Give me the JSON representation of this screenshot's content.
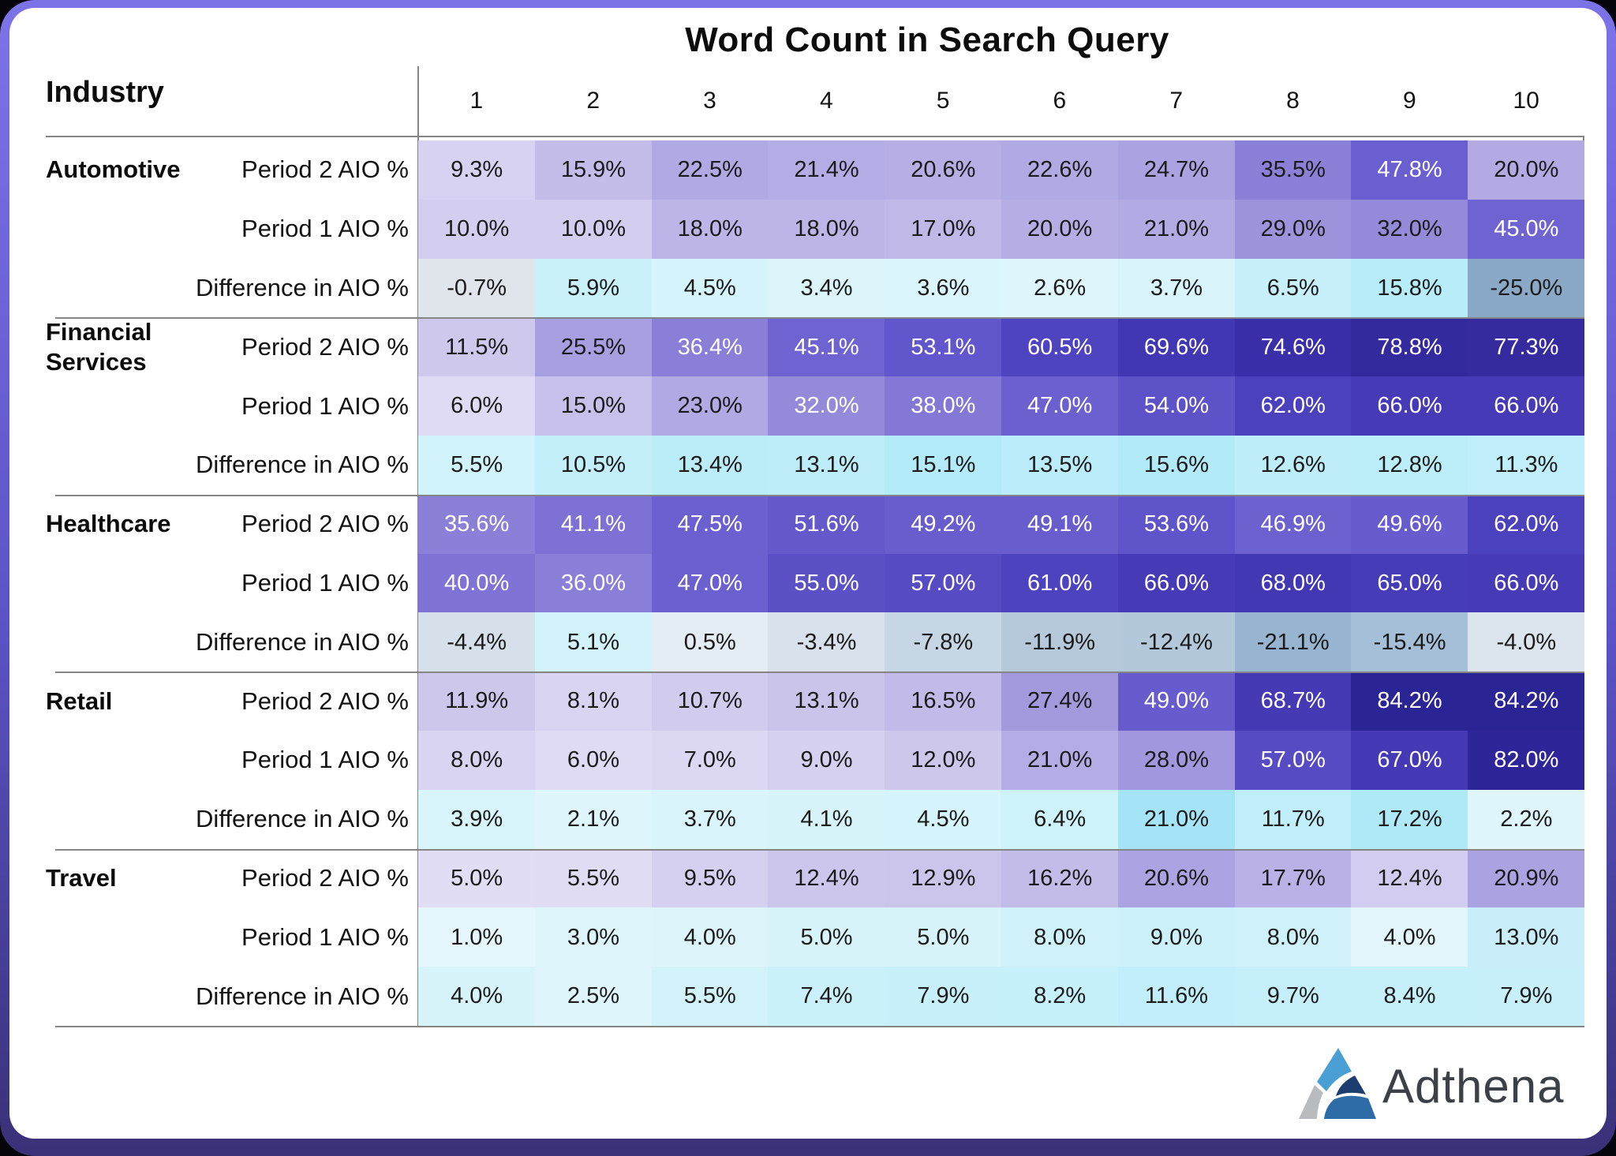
{
  "header": {
    "title": "Word Count in Search Query",
    "industry_label": "Industry"
  },
  "footer": {
    "brand": "Adthena",
    "logo_colors": {
      "top": "#4aa0d5",
      "left": "#b9bcbe",
      "inner": "#1c3e6e",
      "bottom": "#2d6ca7",
      "text": "#3c4147"
    }
  },
  "frame_colors": {
    "border_top": "#7c73e9",
    "border_bottom": "#3a3178",
    "card_bg": "#ffffff",
    "grid_line": "#858585"
  },
  "chart_data": {
    "type": "heatmap",
    "title": "Word Count in Search Query",
    "columns": [
      "1",
      "2",
      "3",
      "4",
      "5",
      "6",
      "7",
      "8",
      "9",
      "10"
    ],
    "row_types": [
      "Period 2 AIO %",
      "Period 1 AIO %",
      "Difference in AIO %"
    ],
    "legend_hint": "purple scale = AIO % magnitude; cyan = positive difference; slate gray = negative difference",
    "industries": [
      {
        "name": "Automotive",
        "rows": [
          {
            "label": "Period 2 AIO %",
            "values": [
              9.3,
              15.9,
              22.5,
              21.4,
              20.6,
              22.6,
              24.7,
              35.5,
              47.8,
              20.0
            ],
            "display": [
              "9.3%",
              "15.9%",
              "22.5%",
              "21.4%",
              "20.6%",
              "22.6%",
              "24.7%",
              "35.5%",
              "47.8%",
              "20.0%"
            ],
            "bg": [
              "#d7d2f1",
              "#c4bdea",
              "#b1a9e3",
              "#b4ace4",
              "#b6aee5",
              "#b1a9e3",
              "#aba2e1",
              "#8b80d8",
              "#6a5ed0",
              "#b3aae4"
            ],
            "text": "ddddddddLd"
          },
          {
            "label": "Period 1 AIO %",
            "values": [
              10.0,
              10.0,
              18.0,
              18.0,
              17.0,
              20.0,
              21.0,
              29.0,
              32.0,
              45.0
            ],
            "display": [
              "10.0%",
              "10.0%",
              "18.0%",
              "18.0%",
              "17.0%",
              "20.0%",
              "21.0%",
              "29.0%",
              "32.0%",
              "45.0%"
            ],
            "bg": [
              "#d3cdef",
              "#d3cdef",
              "#bdb5e7",
              "#bdb5e7",
              "#c0b9e8",
              "#b5ade4",
              "#b2aae3",
              "#9d93dc",
              "#948ada",
              "#6f63d2"
            ],
            "text": "dddddddddL"
          },
          {
            "label": "Difference in AIO %",
            "values": [
              -0.7,
              5.9,
              4.5,
              3.4,
              3.6,
              2.6,
              3.7,
              6.5,
              15.8,
              -25.0
            ],
            "display": [
              "-0.7%",
              "5.9%",
              "4.5%",
              "3.4%",
              "3.6%",
              "2.6%",
              "3.7%",
              "6.5%",
              "15.8%",
              "-25.0%"
            ],
            "bg": [
              "#e0e4eb",
              "#caf1fa",
              "#d5f4fb",
              "#dbf5fb",
              "#daf5fb",
              "#def6fc",
              "#d9f5fb",
              "#c7f0fa",
              "#b7ecf9",
              "#8aa9c6"
            ],
            "text": "dddddddddd"
          }
        ]
      },
      {
        "name": "Financial Services",
        "rows": [
          {
            "label": "Period 2 AIO %",
            "values": [
              11.5,
              25.5,
              36.4,
              45.1,
              53.1,
              60.5,
              69.6,
              74.6,
              78.8,
              77.3
            ],
            "display": [
              "11.5%",
              "25.5%",
              "36.4%",
              "45.1%",
              "53.1%",
              "60.5%",
              "69.6%",
              "74.6%",
              "78.8%",
              "77.3%"
            ],
            "bg": [
              "#cec8ed",
              "#a89fe0",
              "#897ed8",
              "#6f63d2",
              "#6156cb",
              "#4f44c0",
              "#4237b2",
              "#3a2fa8",
              "#332a9e",
              "#352b9f"
            ],
            "text": "ddLLLLLLLL"
          },
          {
            "label": "Period 1 AIO %",
            "values": [
              6.0,
              15.0,
              23.0,
              32.0,
              38.0,
              47.0,
              54.0,
              62.0,
              66.0,
              66.0
            ],
            "display": [
              "6.0%",
              "15.0%",
              "23.0%",
              "32.0%",
              "38.0%",
              "47.0%",
              "54.0%",
              "62.0%",
              "66.0%",
              "66.0%"
            ],
            "bg": [
              "#dfdbf4",
              "#c6c0ea",
              "#b1a9e3",
              "#948ada",
              "#8478d6",
              "#6c60d0",
              "#5e52c8",
              "#4c41bd",
              "#463ab7",
              "#463ab7"
            ],
            "text": "dddLLLLLLL"
          },
          {
            "label": "Difference in AIO %",
            "values": [
              5.5,
              10.5,
              13.4,
              13.1,
              15.1,
              13.5,
              15.6,
              12.6,
              12.8,
              11.3
            ],
            "display": [
              "5.5%",
              "10.5%",
              "13.4%",
              "13.1%",
              "15.1%",
              "13.5%",
              "15.6%",
              "12.6%",
              "12.8%",
              "11.3%"
            ],
            "bg": [
              "#d1f3fb",
              "#c2effa",
              "#bbedf9",
              "#bcedf9",
              "#b4ebf9",
              "#baedf9",
              "#b2eaf8",
              "#bdeef9",
              "#bceef9",
              "#c0eefa"
            ],
            "text": "dddddddddd"
          }
        ]
      },
      {
        "name": "Healthcare",
        "rows": [
          {
            "label": "Period 2 AIO %",
            "values": [
              35.6,
              41.1,
              47.5,
              51.6,
              49.2,
              49.1,
              53.6,
              46.9,
              49.6,
              62.0
            ],
            "display": [
              "35.6%",
              "41.1%",
              "47.5%",
              "51.6%",
              "49.2%",
              "49.1%",
              "53.6%",
              "46.9%",
              "49.6%",
              "62.0%"
            ],
            "bg": [
              "#8b80d8",
              "#7d71d5",
              "#6c60d0",
              "#6458cb",
              "#695dce",
              "#695dce",
              "#6054ca",
              "#6d61d0",
              "#675bcd",
              "#4c41bd"
            ],
            "text": "LLLLLLLLLL"
          },
          {
            "label": "Period 1 AIO %",
            "values": [
              40.0,
              36.0,
              47.0,
              55.0,
              57.0,
              61.0,
              66.0,
              68.0,
              65.0,
              66.0
            ],
            "display": [
              "40.0%",
              "36.0%",
              "47.0%",
              "55.0%",
              "57.0%",
              "61.0%",
              "66.0%",
              "68.0%",
              "65.0%",
              "66.0%"
            ],
            "bg": [
              "#7f73d5",
              "#897ed8",
              "#6c60d0",
              "#5c50c7",
              "#574bc4",
              "#4e43bf",
              "#463ab7",
              "#4338b4",
              "#473cb8",
              "#463ab7"
            ],
            "text": "LLLLLLLLLL"
          },
          {
            "label": "Difference in AIO %",
            "values": [
              -4.4,
              5.1,
              0.5,
              -3.4,
              -7.8,
              -11.9,
              -12.4,
              -21.1,
              -15.4,
              -4.0
            ],
            "display": [
              "-4.4%",
              "5.1%",
              "0.5%",
              "-3.4%",
              "-7.8%",
              "-11.9%",
              "-12.4%",
              "-21.1%",
              "-15.4%",
              "-4.0%"
            ],
            "bg": [
              "#d6e0ea",
              "#d3f3fb",
              "#e4edf3",
              "#d9e2ec",
              "#c7d6e4",
              "#b5c9db",
              "#b3c8da",
              "#97b5d0",
              "#a4bfd7",
              "#dce5ee"
            ],
            "text": "dddddddddd"
          }
        ]
      },
      {
        "name": "Retail",
        "rows": [
          {
            "label": "Period 2 AIO %",
            "values": [
              11.9,
              8.1,
              10.7,
              13.1,
              16.5,
              27.4,
              49.0,
              68.7,
              84.2,
              84.2
            ],
            "display": [
              "11.9%",
              "8.1%",
              "10.7%",
              "13.1%",
              "16.5%",
              "27.4%",
              "49.0%",
              "68.7%",
              "84.2%",
              "84.2%"
            ],
            "bg": [
              "#cdc7ec",
              "#d9d4f1",
              "#d1cbee",
              "#cac4eb",
              "#c2bbe9",
              "#a39ade",
              "#675bcd",
              "#4539b4",
              "#2b2495",
              "#2b2495"
            ],
            "text": "ddddddLLLL"
          },
          {
            "label": "Period 1 AIO %",
            "values": [
              8.0,
              6.0,
              7.0,
              9.0,
              12.0,
              21.0,
              28.0,
              57.0,
              67.0,
              82.0
            ],
            "display": [
              "8.0%",
              "6.0%",
              "7.0%",
              "9.0%",
              "12.0%",
              "21.0%",
              "28.0%",
              "57.0%",
              "67.0%",
              "82.0%"
            ],
            "bg": [
              "#d9d4f1",
              "#dfdbf4",
              "#dcd7f2",
              "#d6d1f0",
              "#cdc7ec",
              "#b4ace4",
              "#a197de",
              "#574bc4",
              "#4539b6",
              "#2e2698"
            ],
            "text": "dddddddLLL"
          },
          {
            "label": "Difference in AIO %",
            "values": [
              3.9,
              2.1,
              3.7,
              4.1,
              4.5,
              6.4,
              21.0,
              11.7,
              17.2,
              2.2
            ],
            "display": [
              "3.9%",
              "2.1%",
              "3.7%",
              "4.1%",
              "4.5%",
              "6.4%",
              "21.0%",
              "11.7%",
              "17.2%",
              "2.2%"
            ],
            "bg": [
              "#d8f5fb",
              "#dff6fc",
              "#d9f5fb",
              "#d7f4fb",
              "#d5f4fb",
              "#cdf2fa",
              "#a4e4f6",
              "#c0eefa",
              "#afe9f8",
              "#def6fc"
            ],
            "text": "dddddddddd"
          }
        ]
      },
      {
        "name": "Travel",
        "rows": [
          {
            "label": "Period 2 AIO %",
            "values": [
              5.0,
              5.5,
              9.5,
              12.4,
              12.9,
              16.2,
              20.6,
              17.7,
              12.4,
              20.9
            ],
            "display": [
              "5.0%",
              "5.5%",
              "9.5%",
              "12.4%",
              "12.9%",
              "16.2%",
              "20.6%",
              "17.7%",
              "12.4%",
              "20.9%"
            ],
            "bg": [
              "#e1ddf5",
              "#e0dcf4",
              "#d5d0f0",
              "#ccc6ec",
              "#cbc5eb",
              "#c3bce9",
              "#aca3e2",
              "#bab2e6",
              "#d2cdf0",
              "#aba2e2"
            ],
            "text": "dddddddddd"
          },
          {
            "label": "Period 1 AIO %",
            "values": [
              1.0,
              3.0,
              4.0,
              5.0,
              5.0,
              8.0,
              9.0,
              8.0,
              4.0,
              13.0
            ],
            "display": [
              "1.0%",
              "3.0%",
              "4.0%",
              "5.0%",
              "5.0%",
              "8.0%",
              "9.0%",
              "8.0%",
              "4.0%",
              "13.0%"
            ],
            "bg": [
              "#e5f7fc",
              "#def5fb",
              "#dbf5fb",
              "#d7f4fb",
              "#d7f4fb",
              "#cff2fa",
              "#cdf1fa",
              "#cff2fa",
              "#e3f6fc",
              "#c9eefa"
            ],
            "text": "dddddddddd"
          },
          {
            "label": "Difference in AIO %",
            "values": [
              4.0,
              2.5,
              5.5,
              7.4,
              7.9,
              8.2,
              11.6,
              9.7,
              8.4,
              7.9
            ],
            "display": [
              "4.0%",
              "2.5%",
              "5.5%",
              "7.4%",
              "7.9%",
              "8.2%",
              "11.6%",
              "9.7%",
              "8.4%",
              "7.9%"
            ],
            "bg": [
              "#d7f4fb",
              "#dff6fc",
              "#d3f3fb",
              "#caf1fa",
              "#c8f0fa",
              "#c6f0fa",
              "#c1eefa",
              "#c5effa",
              "#c6f0fa",
              "#c8f0fa"
            ],
            "text": "dddddddddd"
          }
        ]
      }
    ]
  }
}
